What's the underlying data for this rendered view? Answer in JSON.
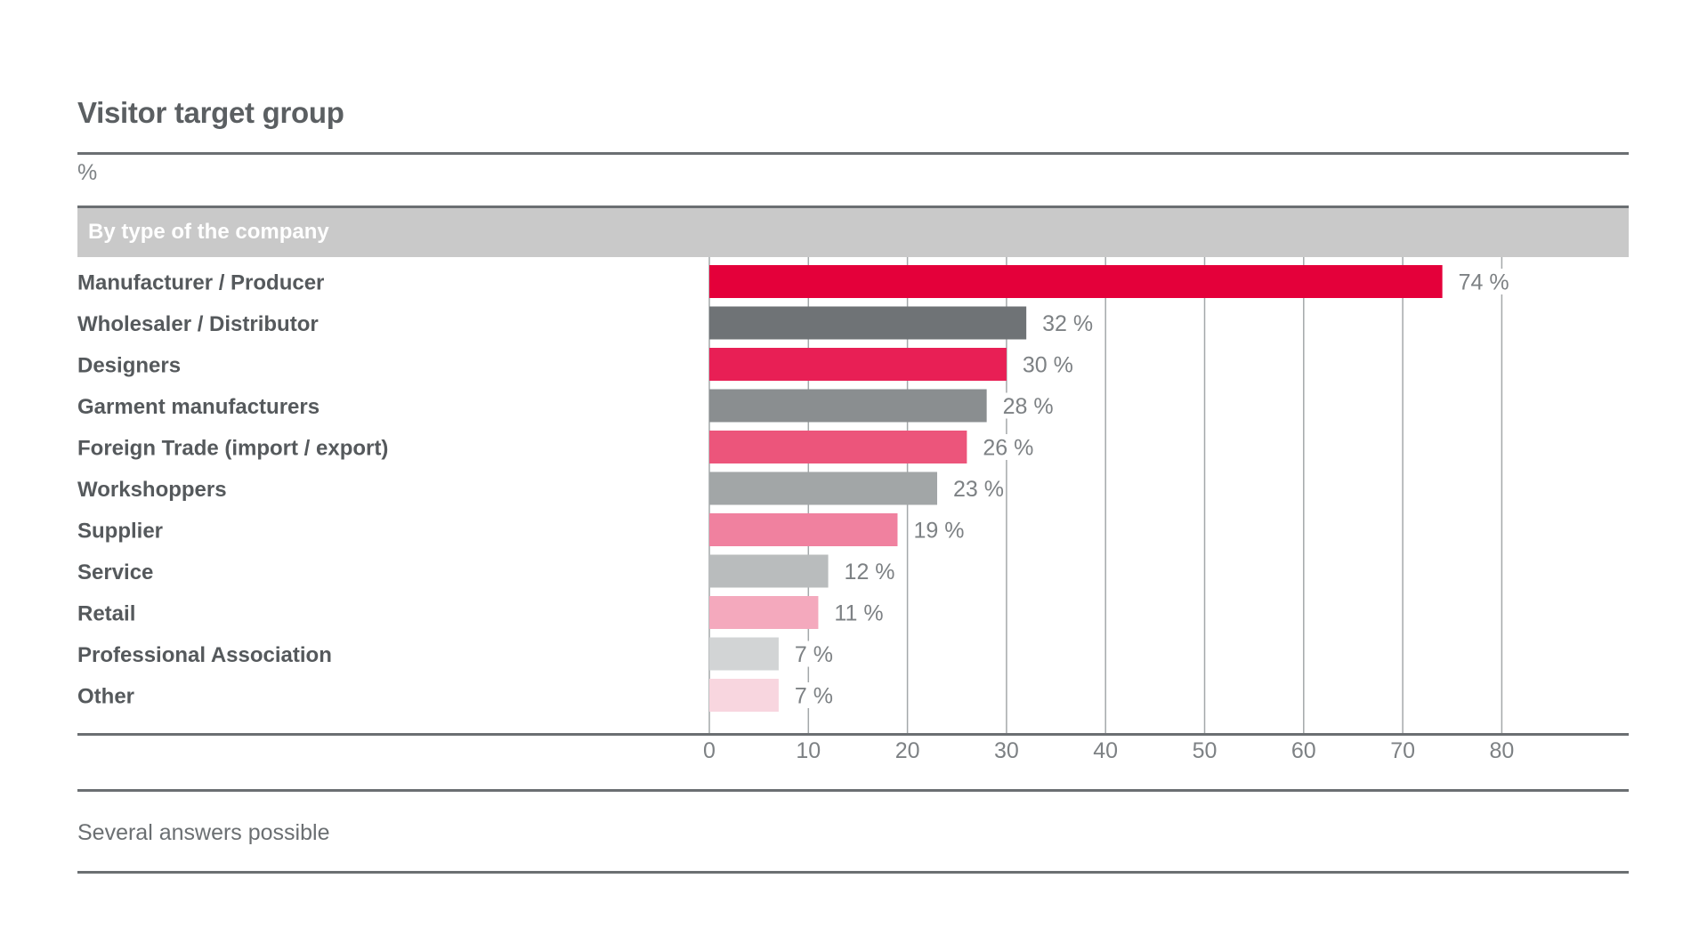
{
  "title": "Visitor target group",
  "unit": "%",
  "section_label": "By type of the company",
  "footnote": "Several answers possible",
  "chart_data": {
    "type": "bar",
    "orientation": "horizontal",
    "title": "Visitor target group",
    "xlabel": "",
    "ylabel": "",
    "xlim": [
      0,
      80
    ],
    "xticks": [
      0,
      10,
      20,
      30,
      40,
      50,
      60,
      70,
      80
    ],
    "grid": true,
    "categories": [
      "Manufacturer / Producer",
      "Wholesaler / Distributor",
      "Designers",
      "Garment manufacturers",
      "Foreign Trade (import / export)",
      "Workshoppers",
      "Supplier",
      "Service",
      "Retail",
      "Professional Association",
      "Other"
    ],
    "values": [
      74,
      32,
      30,
      28,
      26,
      23,
      19,
      12,
      11,
      7,
      7
    ],
    "value_labels": [
      "74 %",
      "32 %",
      "30 %",
      "28 %",
      "26 %",
      "23 %",
      "19 %",
      "12 %",
      "11 %",
      "7 %",
      "7 %"
    ],
    "colors": [
      "#e4003a",
      "#6f7376",
      "#e81f55",
      "#8a8e90",
      "#ec557b",
      "#a2a6a7",
      "#f0819f",
      "#b9bcbd",
      "#f4a9bd",
      "#d2d4d5",
      "#f8d6df"
    ]
  }
}
